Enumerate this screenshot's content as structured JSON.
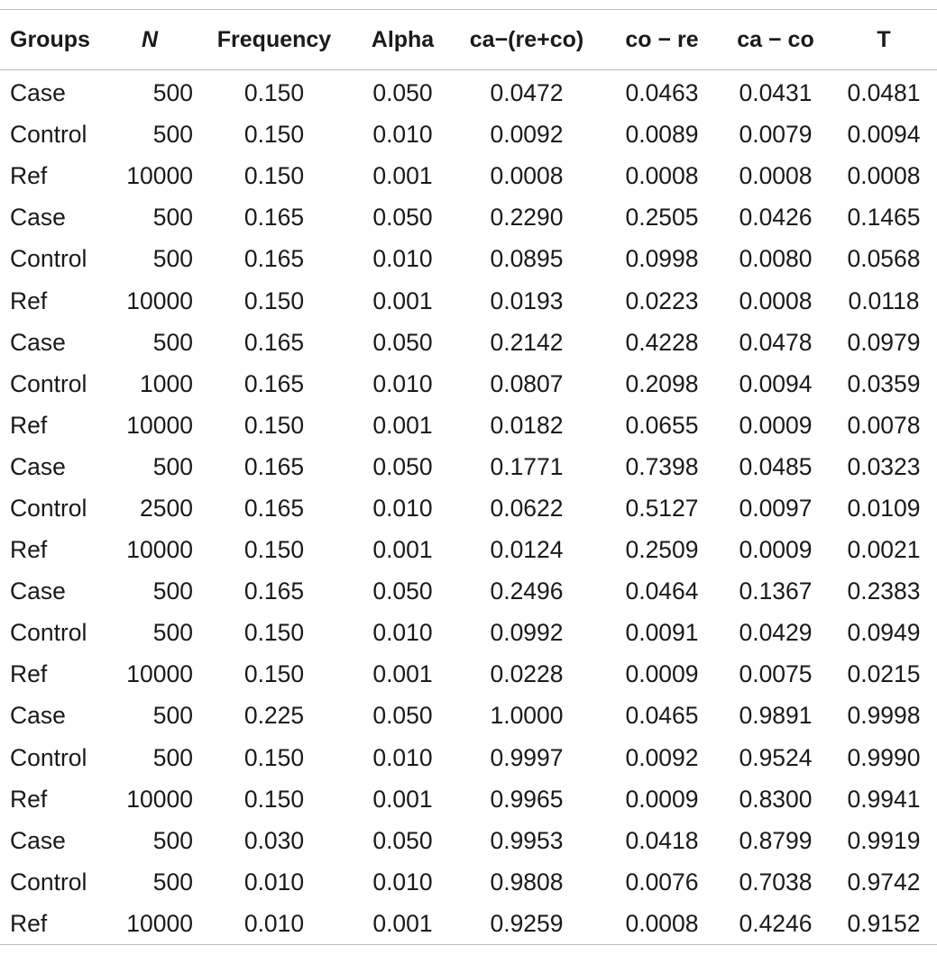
{
  "table": {
    "headers": [
      "Groups",
      "N",
      "Frequency",
      "Alpha",
      "ca−(re+co)",
      "co − re",
      "ca − co",
      "T"
    ],
    "rows": [
      [
        "Case",
        "500",
        "0.150",
        "0.050",
        "0.0472",
        "0.0463",
        "0.0431",
        "0.0481"
      ],
      [
        "Control",
        "500",
        "0.150",
        "0.010",
        "0.0092",
        "0.0089",
        "0.0079",
        "0.0094"
      ],
      [
        "Ref",
        "10000",
        "0.150",
        "0.001",
        "0.0008",
        "0.0008",
        "0.0008",
        "0.0008"
      ],
      [
        "Case",
        "500",
        "0.165",
        "0.050",
        "0.2290",
        "0.2505",
        "0.0426",
        "0.1465"
      ],
      [
        "Control",
        "500",
        "0.165",
        "0.010",
        "0.0895",
        "0.0998",
        "0.0080",
        "0.0568"
      ],
      [
        "Ref",
        "10000",
        "0.150",
        "0.001",
        "0.0193",
        "0.0223",
        "0.0008",
        "0.0118"
      ],
      [
        "Case",
        "500",
        "0.165",
        "0.050",
        "0.2142",
        "0.4228",
        "0.0478",
        "0.0979"
      ],
      [
        "Control",
        "1000",
        "0.165",
        "0.010",
        "0.0807",
        "0.2098",
        "0.0094",
        "0.0359"
      ],
      [
        "Ref",
        "10000",
        "0.150",
        "0.001",
        "0.0182",
        "0.0655",
        "0.0009",
        "0.0078"
      ],
      [
        "Case",
        "500",
        "0.165",
        "0.050",
        "0.1771",
        "0.7398",
        "0.0485",
        "0.0323"
      ],
      [
        "Control",
        "2500",
        "0.165",
        "0.010",
        "0.0622",
        "0.5127",
        "0.0097",
        "0.0109"
      ],
      [
        "Ref",
        "10000",
        "0.150",
        "0.001",
        "0.0124",
        "0.2509",
        "0.0009",
        "0.0021"
      ],
      [
        "Case",
        "500",
        "0.165",
        "0.050",
        "0.2496",
        "0.0464",
        "0.1367",
        "0.2383"
      ],
      [
        "Control",
        "500",
        "0.150",
        "0.010",
        "0.0992",
        "0.0091",
        "0.0429",
        "0.0949"
      ],
      [
        "Ref",
        "10000",
        "0.150",
        "0.001",
        "0.0228",
        "0.0009",
        "0.0075",
        "0.0215"
      ],
      [
        "Case",
        "500",
        "0.225",
        "0.050",
        "1.0000",
        "0.0465",
        "0.9891",
        "0.9998"
      ],
      [
        "Control",
        "500",
        "0.150",
        "0.010",
        "0.9997",
        "0.0092",
        "0.9524",
        "0.9990"
      ],
      [
        "Ref",
        "10000",
        "0.150",
        "0.001",
        "0.9965",
        "0.0009",
        "0.8300",
        "0.9941"
      ],
      [
        "Case",
        "500",
        "0.030",
        "0.050",
        "0.9953",
        "0.0418",
        "0.8799",
        "0.9919"
      ],
      [
        "Control",
        "500",
        "0.010",
        "0.010",
        "0.9808",
        "0.0076",
        "0.7038",
        "0.9742"
      ],
      [
        "Ref",
        "10000",
        "0.010",
        "0.001",
        "0.9259",
        "0.0008",
        "0.4246",
        "0.9152"
      ]
    ]
  }
}
